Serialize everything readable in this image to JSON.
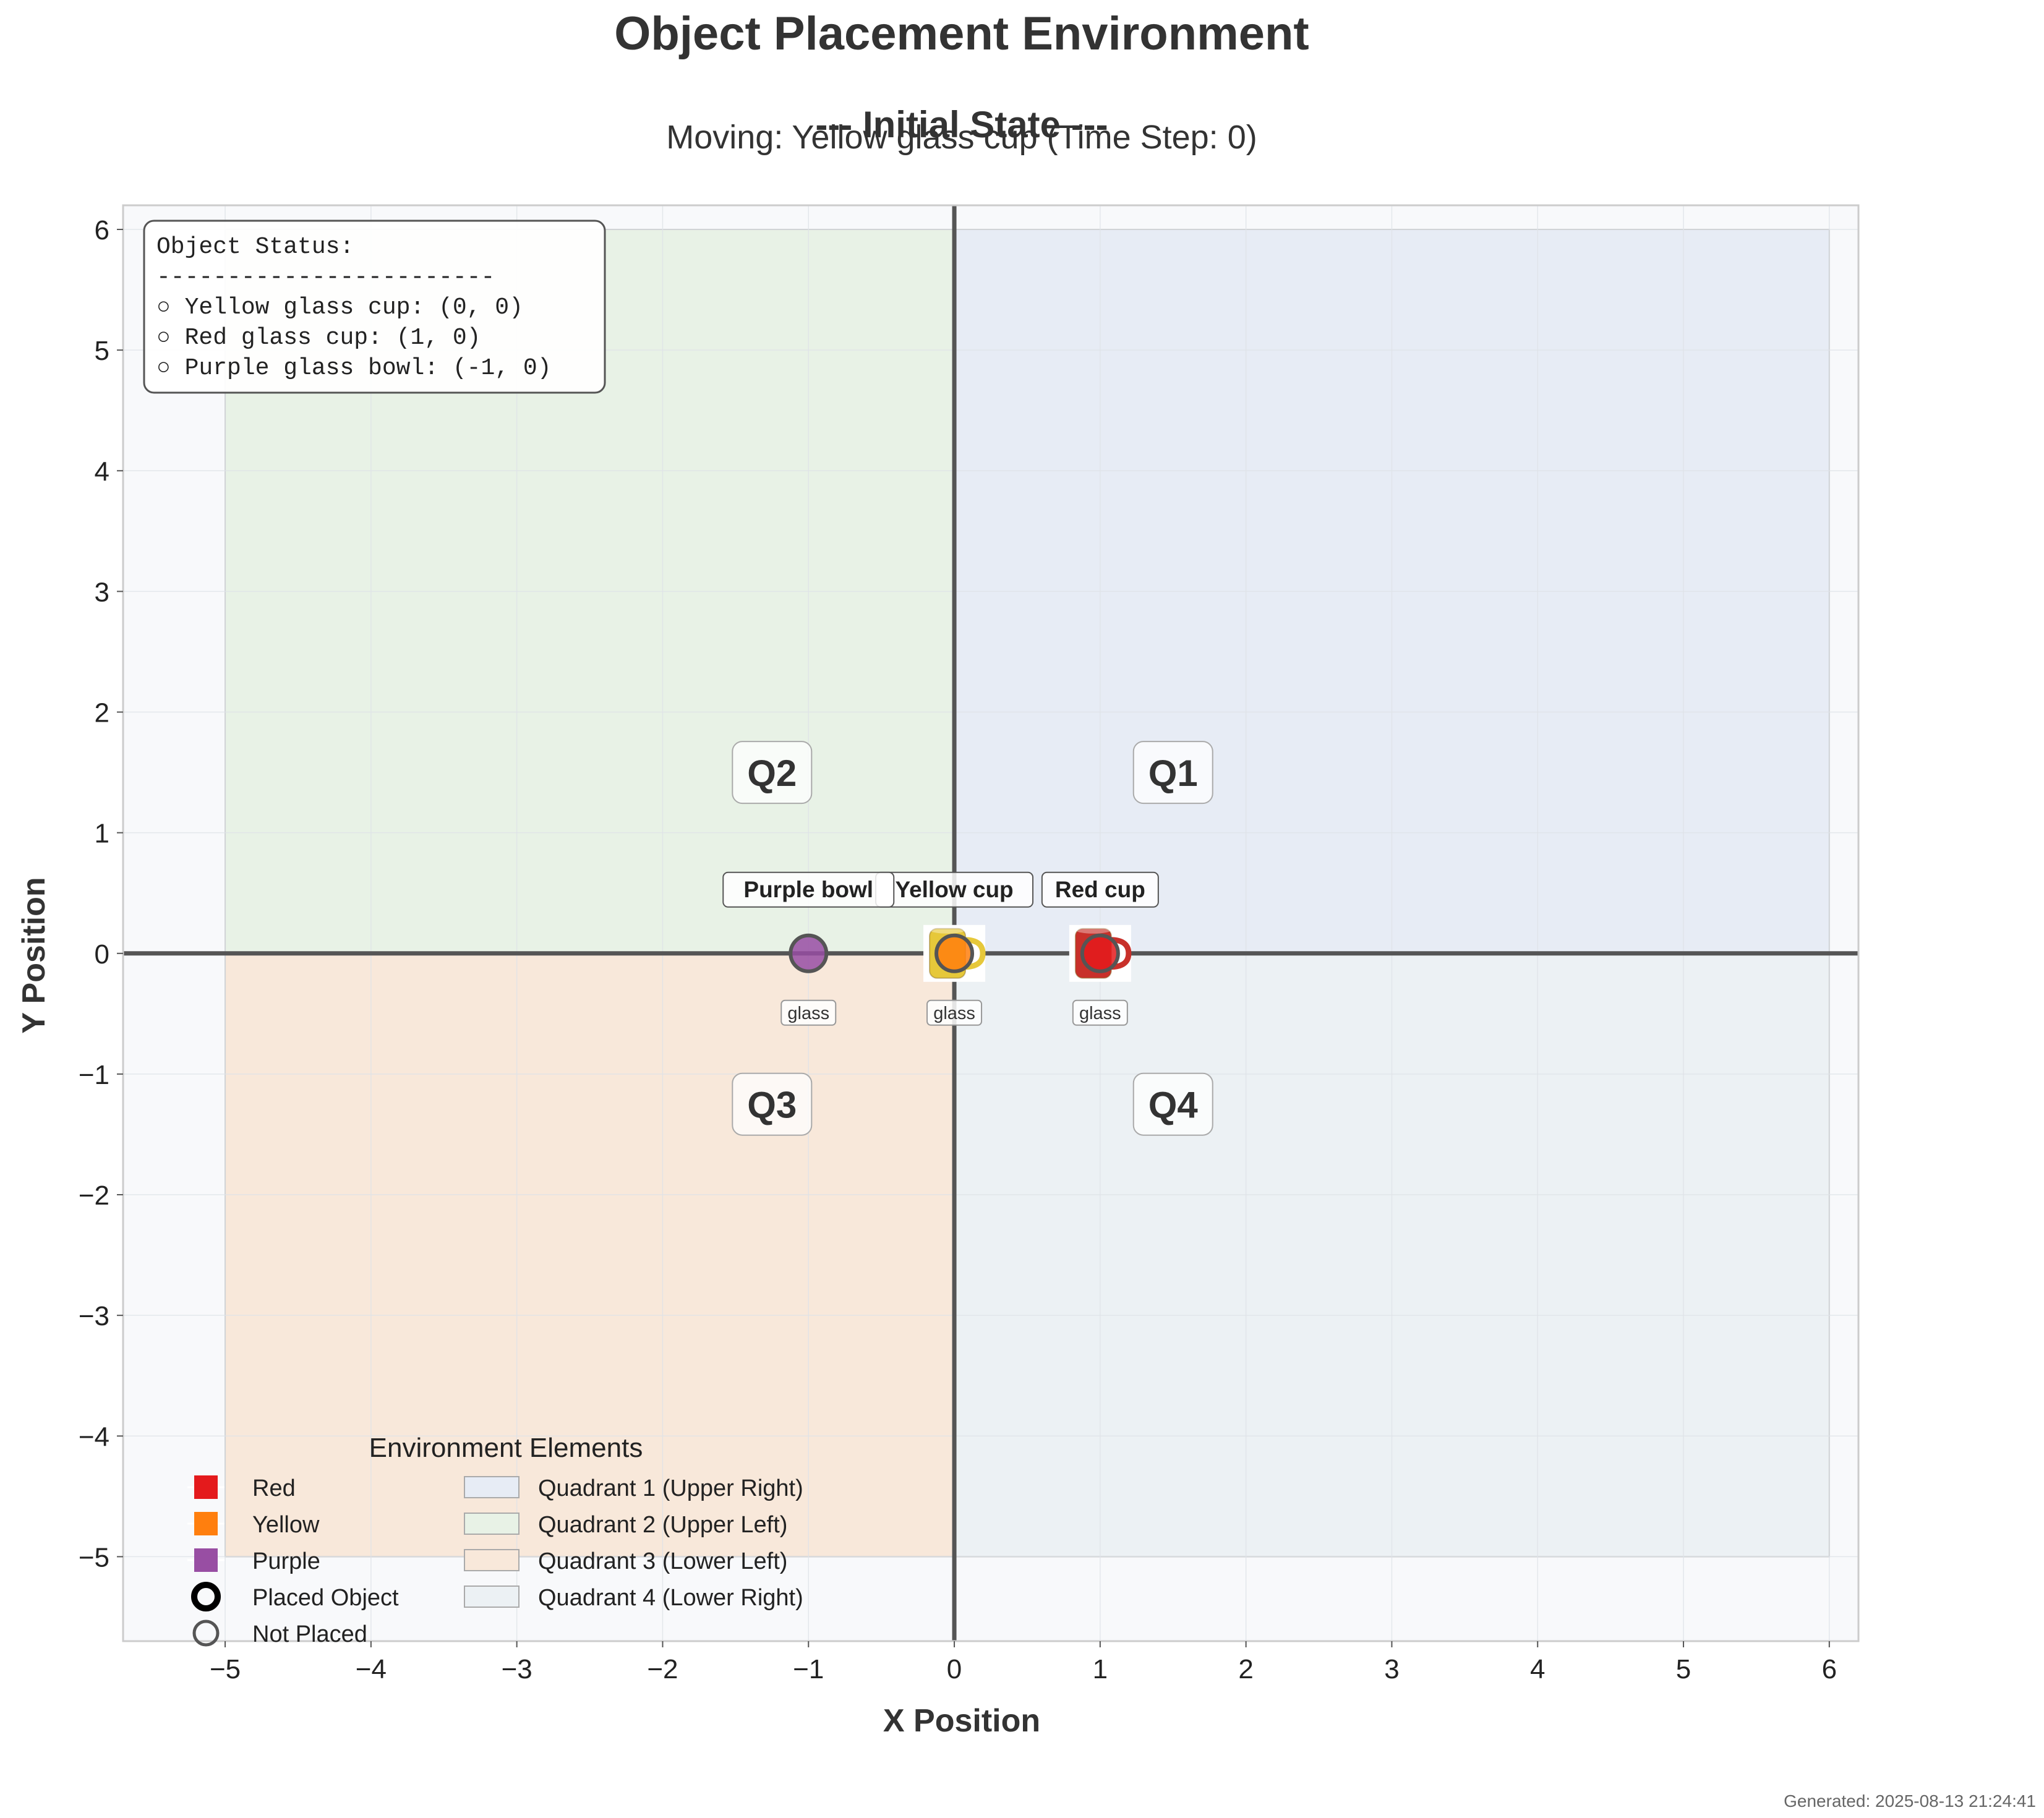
{
  "figure": {
    "title": "Object Placement Environment",
    "state_label": "--- Initial State ---",
    "moving_label": "Moving: Yellow glass cup (Time Step: 0)",
    "footer": "Generated: 2025-08-13 21:24:41"
  },
  "chart_data": {
    "type": "scatter",
    "xlabel": "X Position",
    "ylabel": "Y Position",
    "xlim": [
      -5.7,
      6.2
    ],
    "ylim": [
      -5.7,
      6.2
    ],
    "xticks": [
      -5,
      -4,
      -3,
      -2,
      -1,
      0,
      1,
      2,
      3,
      4,
      5,
      6
    ],
    "yticks": [
      -5,
      -4,
      -3,
      -2,
      -1,
      0,
      1,
      2,
      3,
      4,
      5,
      6
    ],
    "xtick_labels": [
      "−5",
      "−4",
      "−3",
      "−2",
      "−1",
      "0",
      "1",
      "2",
      "3",
      "4",
      "5",
      "6"
    ],
    "ytick_labels": [
      "−5",
      "−4",
      "−3",
      "−2",
      "−1",
      "0",
      "1",
      "2",
      "3",
      "4",
      "5",
      "6"
    ],
    "grid": true,
    "quadrants": [
      {
        "label": "Q1",
        "x_range": [
          0,
          6
        ],
        "y_range": [
          0,
          6
        ],
        "color": "#e7ecf5",
        "label_at": [
          1.5,
          1.5
        ]
      },
      {
        "label": "Q2",
        "x_range": [
          -5,
          0
        ],
        "y_range": [
          0,
          6
        ],
        "color": "#e8f2e6",
        "label_at": [
          -1.25,
          1.5
        ]
      },
      {
        "label": "Q3",
        "x_range": [
          -5,
          0
        ],
        "y_range": [
          -5,
          0
        ],
        "color": "#f8e8da",
        "label_at": [
          -1.25,
          -1.25
        ]
      },
      {
        "label": "Q4",
        "x_range": [
          0,
          6
        ],
        "y_range": [
          -5,
          0
        ],
        "color": "#ecf1f4",
        "label_at": [
          1.5,
          -1.25
        ]
      }
    ],
    "objects": [
      {
        "name": "Yellow glass cup",
        "label": "Yellow cup",
        "material": "glass",
        "x": 0,
        "y": 0,
        "color": "#ff7f0e",
        "icon": "yellow-mug-icon",
        "icon_color": "#e6c83a"
      },
      {
        "name": "Red glass cup",
        "label": "Red cup",
        "material": "glass",
        "x": 1,
        "y": 0,
        "color": "#e41a1c",
        "icon": "red-mug-icon",
        "icon_color": "#c8302a"
      },
      {
        "name": "Purple glass bowl",
        "label": "Purple bowl",
        "material": "glass",
        "x": -1,
        "y": 0,
        "color": "#984ea3",
        "icon": "",
        "icon_color": ""
      }
    ],
    "status_box": {
      "title": "Object Status:",
      "divider": "------------------------",
      "lines": [
        "○ Yellow glass cup: (0, 0)",
        "○ Red glass cup: (1, 0)",
        "○ Purple glass bowl: (-1, 0)"
      ]
    },
    "legend": {
      "title": "Environment Elements",
      "placement": "lower-left",
      "items": [
        {
          "label": "Red",
          "kind": "square",
          "color": "#e41a1c"
        },
        {
          "label": "Yellow",
          "kind": "square",
          "color": "#ff7f0e"
        },
        {
          "label": "Purple",
          "kind": "square",
          "color": "#984ea3"
        },
        {
          "label": "Placed Object",
          "kind": "ring-bold",
          "color": "#000000"
        },
        {
          "label": "Not Placed",
          "kind": "ring",
          "color": "#555555"
        },
        {
          "label": "Quadrant 1 (Upper Right)",
          "kind": "patch",
          "color": "#e7ecf5"
        },
        {
          "label": "Quadrant 2 (Upper Left)",
          "kind": "patch",
          "color": "#e8f2e6"
        },
        {
          "label": "Quadrant 3 (Lower Left)",
          "kind": "patch",
          "color": "#f8e8da"
        },
        {
          "label": "Quadrant 4 (Lower Right)",
          "kind": "patch",
          "color": "#ecf1f4"
        }
      ]
    }
  }
}
